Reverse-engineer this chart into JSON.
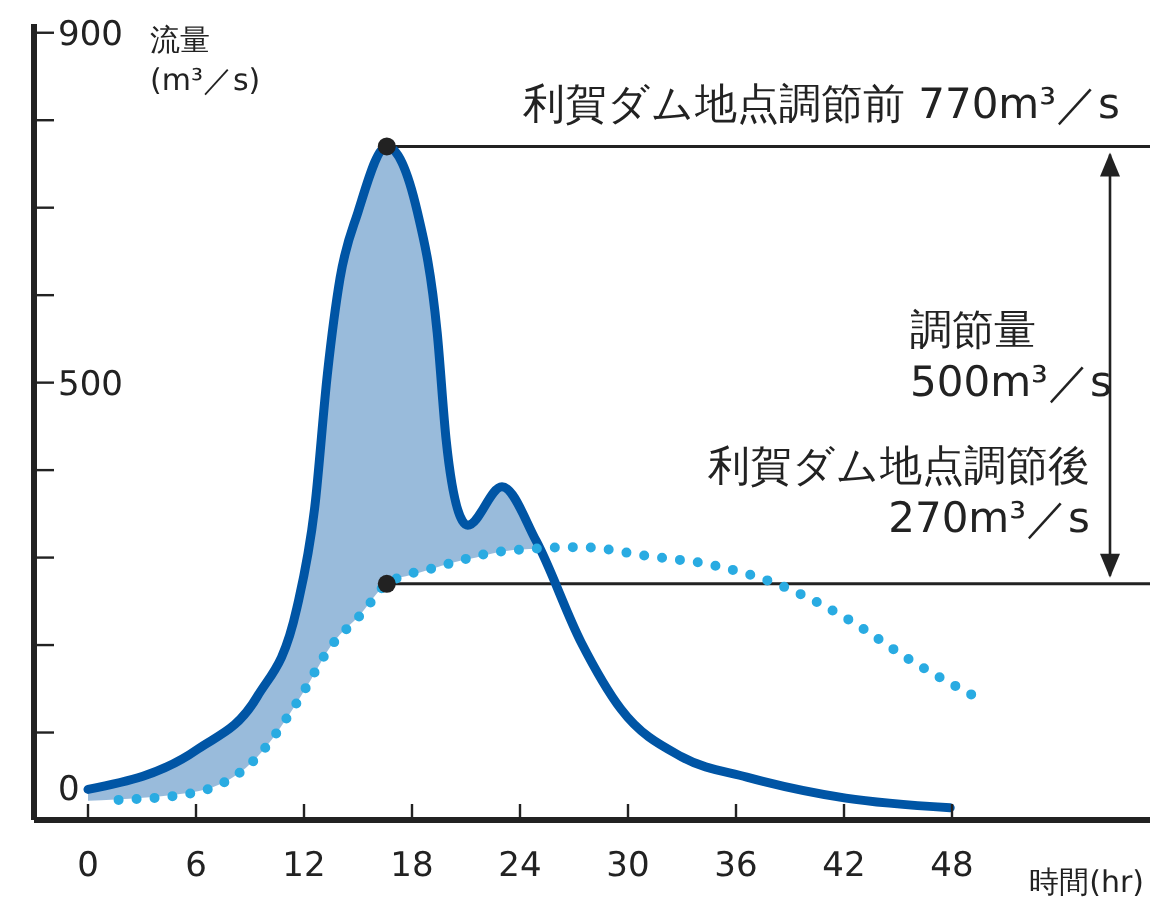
{
  "chart_data": {
    "type": "line",
    "xlabel": "時間(hr)",
    "ylabel": "流量\n(m³／s)",
    "xlim": [
      -3,
      59
    ],
    "xticks": [
      0,
      6,
      12,
      18,
      24,
      30,
      36,
      42,
      48
    ],
    "ylim": [
      0,
      910
    ],
    "yticks": [
      0,
      {
        "value": 100,
        "label": null
      },
      {
        "value": 200,
        "label": null
      },
      {
        "value": 300,
        "label": null
      },
      {
        "value": 400,
        "label": null
      },
      500,
      {
        "value": 600,
        "label": null
      },
      {
        "value": 700,
        "label": null
      },
      {
        "value": 800,
        "label": null
      },
      900
    ],
    "grid": false,
    "legend": false,
    "marker": "none",
    "series": [
      {
        "color": "#0055a5",
        "line_style": "solid",
        "x": [
          0,
          6.1,
          9.4,
          11.6,
          12.6,
          13.3,
          14,
          15,
          16.6,
          18.3,
          19.4,
          19.9,
          20.8,
          21.1,
          23,
          24.9,
          27.4,
          29.6,
          33,
          36.6,
          42.1,
          47.9
        ],
        "values": [
          35,
          81,
          141,
          242,
          358,
          510,
          619,
          695,
          770,
          695,
          557,
          434,
          342,
          337,
          381,
          319,
          203,
          127,
          72,
          49,
          25,
          14
        ],
        "lower": [
          22,
          33,
          72,
          134,
          168,
          193,
          212,
          232,
          270,
          282,
          289,
          292,
          297,
          298,
          307,
          310,
          null,
          null,
          null,
          null,
          null,
          null
        ],
        "upper": [
          35,
          81,
          141,
          242,
          358,
          510,
          619,
          695,
          770,
          695,
          557,
          434,
          342,
          337,
          381,
          319,
          null,
          null,
          null,
          null,
          null,
          null
        ]
      },
      {
        "color": "#29abe2",
        "line_style": "dotted",
        "x": [
          1.7,
          5.6,
          9.4,
          11.6,
          13.4,
          15.3,
          16.6,
          19.4,
          23,
          27.4,
          31,
          34.8,
          38.5,
          42.1,
          45.9,
          49.3
        ],
        "values": [
          23,
          30,
          72,
          134,
          196,
          238,
          270,
          289,
          307,
          312,
          302,
          291,
          268,
          231,
          180,
          141
        ]
      },
      {
        "type": "scatter",
        "color": "#222222",
        "marker": "circle",
        "x": [
          16.6,
          16.6
        ],
        "values": [
          770,
          270
        ]
      }
    ],
    "ref_lines": [
      {
        "axis": "y",
        "value": 770,
        "label": "利賀ダム地点調節前 770m³／s",
        "color": "#222222"
      },
      {
        "axis": "y",
        "value": 270,
        "label": "利賀ダム地点調節後\n270m³／s",
        "color": "#222222"
      }
    ],
    "annotations": [
      "調節量\n500m³／s"
    ]
  }
}
